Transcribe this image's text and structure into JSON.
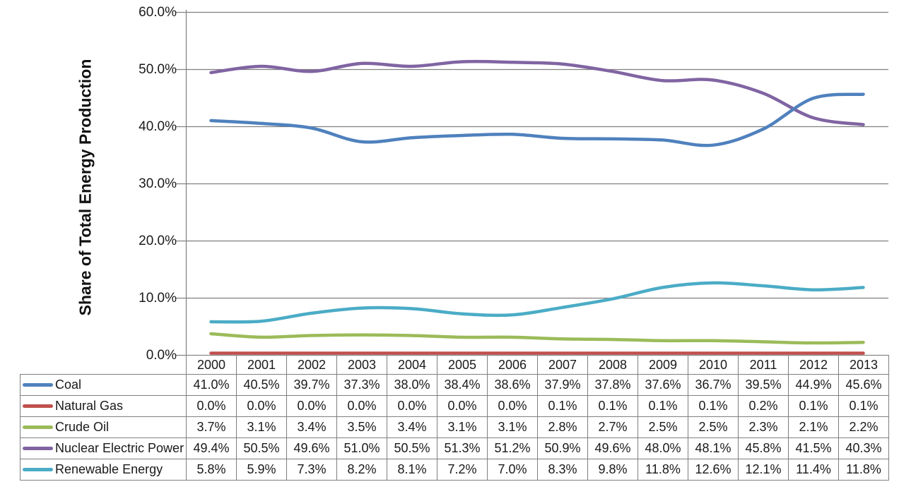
{
  "chart_data": {
    "type": "line",
    "title": "",
    "xlabel": "",
    "ylabel": "Share of Total Energy Production",
    "ylim": [
      0,
      60
    ],
    "y_ticks": [
      "0.0%",
      "10.0%",
      "20.0%",
      "30.0%",
      "40.0%",
      "50.0%",
      "60.0%"
    ],
    "grid": true,
    "legend_position": "data-table-left",
    "value_format": "percent-1-decimal",
    "categories": [
      "2000",
      "2001",
      "2002",
      "2003",
      "2004",
      "2005",
      "2006",
      "2007",
      "2008",
      "2009",
      "2010",
      "2011",
      "2012",
      "2013"
    ],
    "series": [
      {
        "name": "Coal",
        "color": "#4F81BD",
        "values": [
          41.0,
          40.5,
          39.7,
          37.3,
          38.0,
          38.4,
          38.6,
          37.9,
          37.8,
          37.6,
          36.7,
          39.5,
          44.9,
          45.6
        ]
      },
      {
        "name": "Natural Gas",
        "color": "#C0504D",
        "values": [
          0.0,
          0.0,
          0.0,
          0.0,
          0.0,
          0.0,
          0.0,
          0.1,
          0.1,
          0.1,
          0.1,
          0.2,
          0.1,
          0.1
        ]
      },
      {
        "name": "Crude Oil",
        "color": "#9BBB59",
        "values": [
          3.7,
          3.1,
          3.4,
          3.5,
          3.4,
          3.1,
          3.1,
          2.8,
          2.7,
          2.5,
          2.5,
          2.3,
          2.1,
          2.2
        ]
      },
      {
        "name": "Nuclear Electric Power",
        "color": "#8064A2",
        "values": [
          49.4,
          50.5,
          49.6,
          51.0,
          50.5,
          51.3,
          51.2,
          50.9,
          49.6,
          48.0,
          48.1,
          45.8,
          41.5,
          40.3
        ]
      },
      {
        "name": "Renewable Energy",
        "color": "#4BACC6",
        "values": [
          5.8,
          5.9,
          7.3,
          8.2,
          8.1,
          7.2,
          7.0,
          8.3,
          9.8,
          11.8,
          12.6,
          12.1,
          11.4,
          11.8
        ]
      }
    ],
    "colors": {
      "gridline": "#7f7f7f",
      "axis": "#7f7f7f",
      "table_border": "#7f7f7f",
      "text": "#1a1a1a"
    }
  }
}
